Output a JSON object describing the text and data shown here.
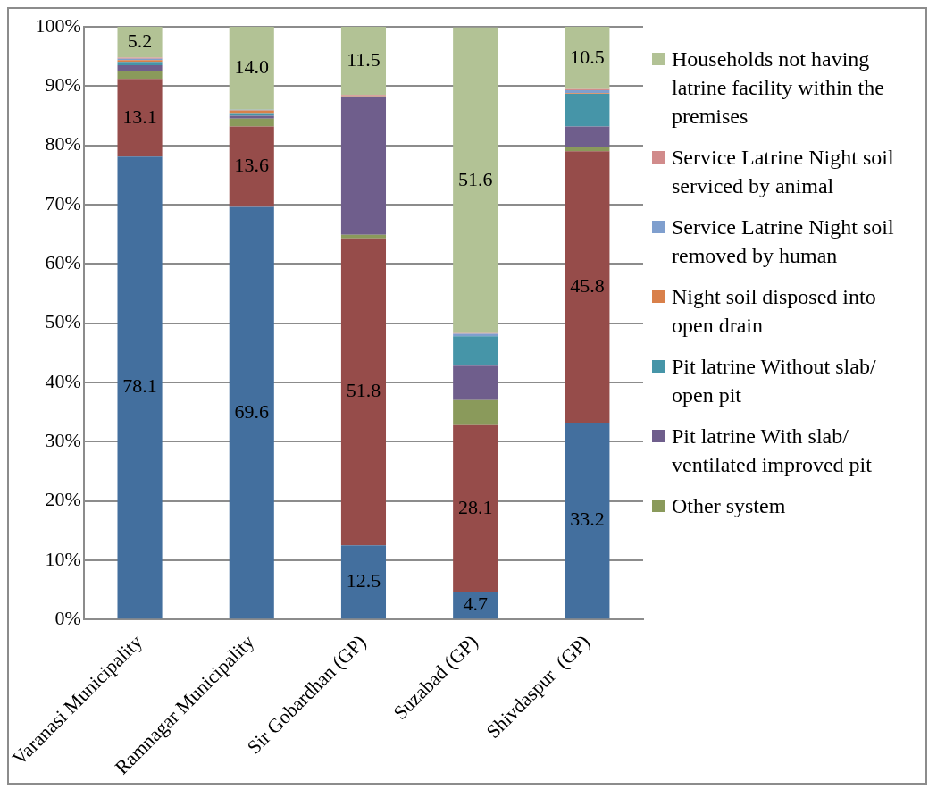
{
  "chart_data": {
    "type": "bar",
    "stacked": true,
    "categories": [
      "Varanasi Municipality",
      "Ramnagar Municipality",
      "Sir Gobardhan (GP)",
      "Suzabad (GP)",
      "Shivdaspur  (GP)"
    ],
    "ylim": [
      0,
      100
    ],
    "yticks": [
      {
        "value": 0,
        "label": "0%"
      },
      {
        "value": 10,
        "label": "10%"
      },
      {
        "value": 20,
        "label": "20%"
      },
      {
        "value": 30,
        "label": "30%"
      },
      {
        "value": 40,
        "label": "40%"
      },
      {
        "value": 50,
        "label": "50%"
      },
      {
        "value": 60,
        "label": "60%"
      },
      {
        "value": 70,
        "label": "70%"
      },
      {
        "value": 80,
        "label": "80%"
      },
      {
        "value": 90,
        "label": "90%"
      },
      {
        "value": 100,
        "label": "100%"
      }
    ],
    "grid": "y",
    "legend": "right",
    "series": [
      {
        "color": "#436f9e",
        "values": [
          78.1,
          69.6,
          12.5,
          4.7,
          33.2
        ],
        "value_labels": [
          "78.1",
          "69.6",
          "12.5",
          "4.7",
          "33.2"
        ]
      },
      {
        "color": "#964c4a",
        "values": [
          13.1,
          13.6,
          51.8,
          28.1,
          45.8
        ],
        "value_labels": [
          "13.1",
          "13.6",
          "51.8",
          "28.1",
          "45.8"
        ]
      },
      {
        "name": "Other system",
        "color": "#8a9a5b",
        "values": [
          1.3,
          1.3,
          0.6,
          4.2,
          0.7
        ]
      },
      {
        "name": "Pit latrine With slab/ ventilated improved pit",
        "color": "#6f5e8c",
        "values": [
          1.0,
          0.5,
          23.2,
          5.8,
          3.5
        ]
      },
      {
        "name": "Pit latrine Without slab/  open pit",
        "color": "#4695a8",
        "values": [
          0.6,
          0.3,
          0.1,
          5.0,
          5.5
        ]
      },
      {
        "name": "Night soil disposed into open drain",
        "color": "#d9804a",
        "values": [
          0.3,
          0.6,
          0.1,
          null,
          0.1
        ]
      },
      {
        "name": "Service Latrine Night soil removed by human",
        "color": "#7f9fce",
        "values": [
          0.2,
          0.1,
          0.1,
          0.4,
          0.5
        ]
      },
      {
        "name": "Service Latrine Night soil serviced by animal",
        "color": "#d18b8b",
        "values": [
          0.2,
          0,
          0.1,
          0.1,
          0.2
        ]
      },
      {
        "name": "Households not having latrine facility within the premises",
        "color": "#b2c295",
        "values": [
          5.2,
          14.0,
          11.5,
          51.6,
          10.5
        ],
        "value_labels": [
          "5.2",
          "14.0",
          "11.5",
          "51.6",
          "10.5"
        ]
      }
    ]
  }
}
